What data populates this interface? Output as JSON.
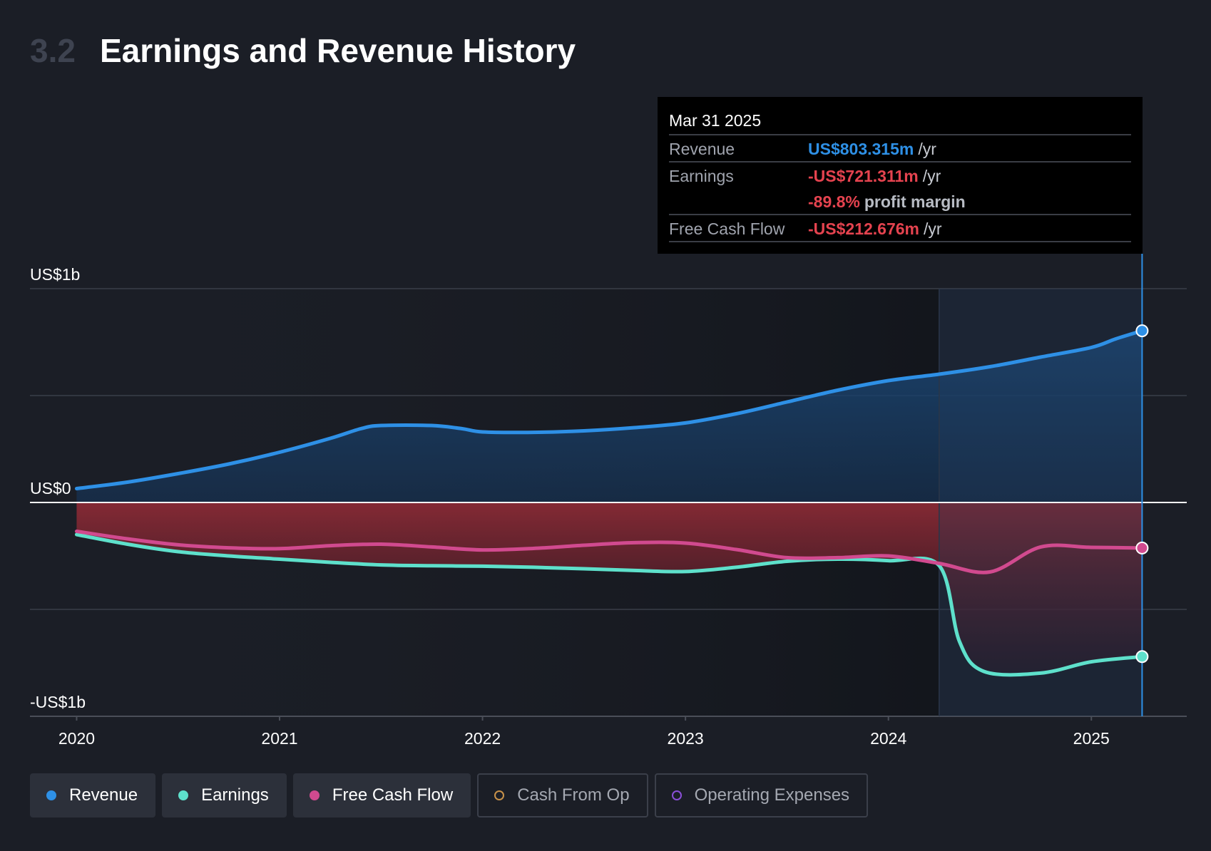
{
  "header": {
    "section_number": "3.2",
    "title": "Earnings and Revenue History"
  },
  "tooltip": {
    "date": "Mar 31 2025",
    "revenue": {
      "label": "Revenue",
      "value": "US$803.315m",
      "unit": "/yr"
    },
    "earnings": {
      "label": "Earnings",
      "value": "-US$721.311m",
      "unit": "/yr"
    },
    "profit_margin": {
      "value": "-89.8%",
      "label": "profit margin"
    },
    "free_cash_flow": {
      "label": "Free Cash Flow",
      "value": "-US$212.676m",
      "unit": "/yr"
    }
  },
  "legend": [
    {
      "label": "Revenue",
      "color": "#2e90e6",
      "active": true
    },
    {
      "label": "Earnings",
      "color": "#5ee0cb",
      "active": true
    },
    {
      "label": "Free Cash Flow",
      "color": "#d14a8f",
      "active": true
    },
    {
      "label": "Cash From Op",
      "color": "#c8924a",
      "active": false
    },
    {
      "label": "Operating Expenses",
      "color": "#8a4fd8",
      "active": false
    }
  ],
  "chart_data": {
    "type": "area",
    "x_unit": "year",
    "y_unit": "US$ millions",
    "ylim": [
      -1000,
      1000
    ],
    "yticks": [
      {
        "value": 1000,
        "label": "US$1b"
      },
      {
        "value": 0,
        "label": "US$0"
      },
      {
        "value": -1000,
        "label": "-US$1b"
      }
    ],
    "xticks": [
      {
        "value": 2020,
        "label": "2020"
      },
      {
        "value": 2021,
        "label": "2021"
      },
      {
        "value": 2022,
        "label": "2022"
      },
      {
        "value": 2023,
        "label": "2023"
      },
      {
        "value": 2024,
        "label": "2024"
      },
      {
        "value": 2025,
        "label": "2025"
      }
    ],
    "xlim": [
      2019.77,
      2025.47
    ],
    "forecast_shade_start": 2024.25,
    "highlight_x": 2025.25,
    "series": [
      {
        "name": "Revenue",
        "color": "#2e90e6",
        "points": [
          [
            2020.0,
            65
          ],
          [
            2020.25,
            95
          ],
          [
            2020.5,
            135
          ],
          [
            2020.75,
            180
          ],
          [
            2021.0,
            235
          ],
          [
            2021.25,
            300
          ],
          [
            2021.4,
            345
          ],
          [
            2021.5,
            360
          ],
          [
            2021.75,
            360
          ],
          [
            2021.9,
            345
          ],
          [
            2022.0,
            330
          ],
          [
            2022.25,
            328
          ],
          [
            2022.5,
            335
          ],
          [
            2022.75,
            350
          ],
          [
            2023.0,
            372
          ],
          [
            2023.25,
            415
          ],
          [
            2023.5,
            470
          ],
          [
            2023.75,
            525
          ],
          [
            2024.0,
            570
          ],
          [
            2024.25,
            600
          ],
          [
            2024.5,
            635
          ],
          [
            2024.75,
            680
          ],
          [
            2025.0,
            725
          ],
          [
            2025.12,
            765
          ],
          [
            2025.25,
            803
          ]
        ]
      },
      {
        "name": "Earnings",
        "color": "#5ee0cb",
        "points": [
          [
            2020.0,
            -150
          ],
          [
            2020.25,
            -195
          ],
          [
            2020.5,
            -230
          ],
          [
            2020.75,
            -250
          ],
          [
            2021.0,
            -265
          ],
          [
            2021.25,
            -280
          ],
          [
            2021.5,
            -292
          ],
          [
            2021.75,
            -296
          ],
          [
            2022.0,
            -298
          ],
          [
            2022.25,
            -303
          ],
          [
            2022.5,
            -310
          ],
          [
            2022.75,
            -318
          ],
          [
            2023.0,
            -323
          ],
          [
            2023.25,
            -303
          ],
          [
            2023.5,
            -275
          ],
          [
            2023.75,
            -265
          ],
          [
            2024.0,
            -272
          ],
          [
            2024.25,
            -295
          ],
          [
            2024.35,
            -650
          ],
          [
            2024.47,
            -790
          ],
          [
            2024.75,
            -798
          ],
          [
            2025.0,
            -745
          ],
          [
            2025.25,
            -721
          ]
        ]
      },
      {
        "name": "Free Cash Flow",
        "color": "#d14a8f",
        "points": [
          [
            2020.0,
            -135
          ],
          [
            2020.25,
            -170
          ],
          [
            2020.5,
            -198
          ],
          [
            2020.75,
            -212
          ],
          [
            2021.0,
            -216
          ],
          [
            2021.25,
            -202
          ],
          [
            2021.5,
            -195
          ],
          [
            2021.75,
            -208
          ],
          [
            2022.0,
            -222
          ],
          [
            2022.25,
            -215
          ],
          [
            2022.5,
            -200
          ],
          [
            2022.75,
            -188
          ],
          [
            2023.0,
            -190
          ],
          [
            2023.25,
            -220
          ],
          [
            2023.5,
            -258
          ],
          [
            2023.75,
            -258
          ],
          [
            2024.0,
            -250
          ],
          [
            2024.25,
            -285
          ],
          [
            2024.5,
            -325
          ],
          [
            2024.75,
            -208
          ],
          [
            2025.0,
            -210
          ],
          [
            2025.25,
            -213
          ]
        ]
      }
    ]
  }
}
